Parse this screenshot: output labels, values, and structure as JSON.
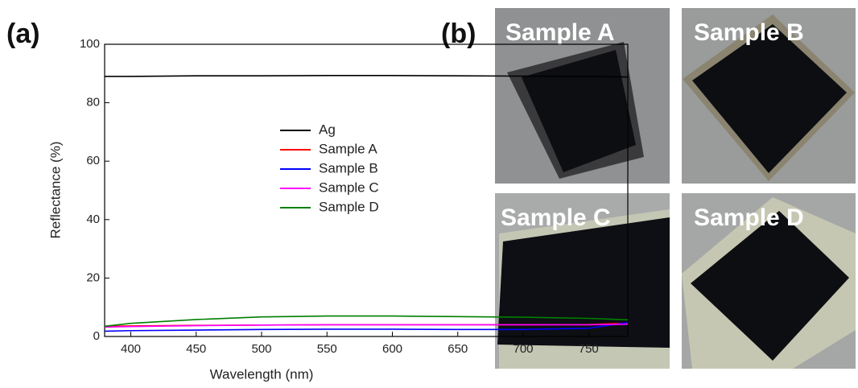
{
  "panel_labels": [
    "(a)",
    "(b)"
  ],
  "chart_data": {
    "type": "line",
    "x_label": "Wavelength (nm)",
    "y_label": "Reflectance (%)",
    "x": [
      380,
      400,
      450,
      500,
      550,
      600,
      650,
      700,
      750,
      780
    ],
    "series": [
      {
        "name": "Ag",
        "color": "#000000",
        "values": [
          89,
          89,
          89.2,
          89.2,
          89.3,
          89.3,
          89.2,
          89.1,
          89,
          88.8
        ]
      },
      {
        "name": "Sample A",
        "color": "#ff0000",
        "values": [
          3.5,
          3.6,
          3.8,
          3.9,
          4,
          4,
          4,
          4,
          4.1,
          4.6
        ]
      },
      {
        "name": "Sample B",
        "color": "#0000ff",
        "values": [
          1.8,
          2,
          2.2,
          2.4,
          2.5,
          2.5,
          2.4,
          2.4,
          2.8,
          4.8
        ]
      },
      {
        "name": "Sample C",
        "color": "#ff00ff",
        "values": [
          3.2,
          3.4,
          3.7,
          3.9,
          4,
          4,
          4,
          4,
          4,
          4.2
        ]
      },
      {
        "name": "Sample D",
        "color": "#008000",
        "values": [
          3.5,
          4.5,
          5.8,
          6.7,
          7,
          7,
          6.8,
          6.6,
          6.2,
          5.7
        ]
      }
    ],
    "xlim": [
      380,
      780
    ],
    "xticks": [
      400,
      450,
      500,
      550,
      600,
      650,
      700,
      750
    ],
    "ylim": [
      0,
      100
    ],
    "yticks": [
      0,
      20,
      40,
      60,
      80,
      100
    ],
    "legend": "right"
  },
  "photos": [
    "Sample A",
    "Sample B",
    "Sample C",
    "Sample D"
  ]
}
